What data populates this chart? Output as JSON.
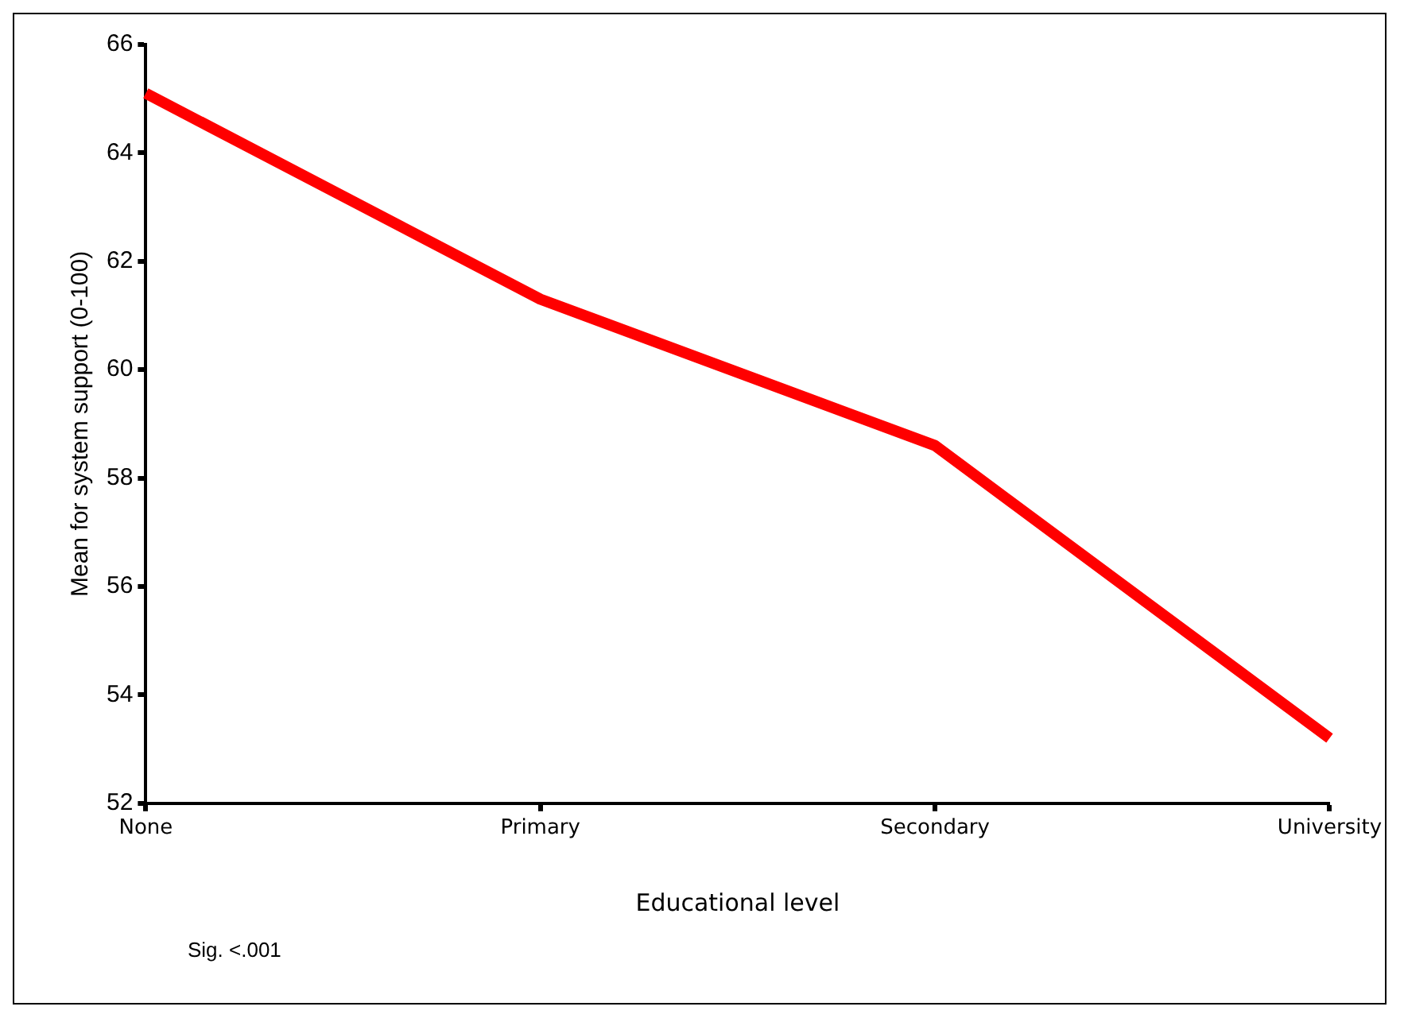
{
  "chart_data": {
    "type": "line",
    "xlabel": "Educational level",
    "ylabel": "Mean for system support (0-100)",
    "categories": [
      "None",
      "Primary",
      "Secondary",
      "University"
    ],
    "series": [
      {
        "color": "#ff0000",
        "values": [
          65.1,
          61.3,
          58.6,
          53.2
        ]
      }
    ],
    "ylim": [
      52,
      66
    ],
    "yticks": [
      52,
      54,
      56,
      58,
      60,
      62,
      64,
      66
    ],
    "grid": false,
    "legend": false,
    "marker": "none",
    "line_style": "solid",
    "annotations": [
      "Sig. <.001"
    ]
  }
}
